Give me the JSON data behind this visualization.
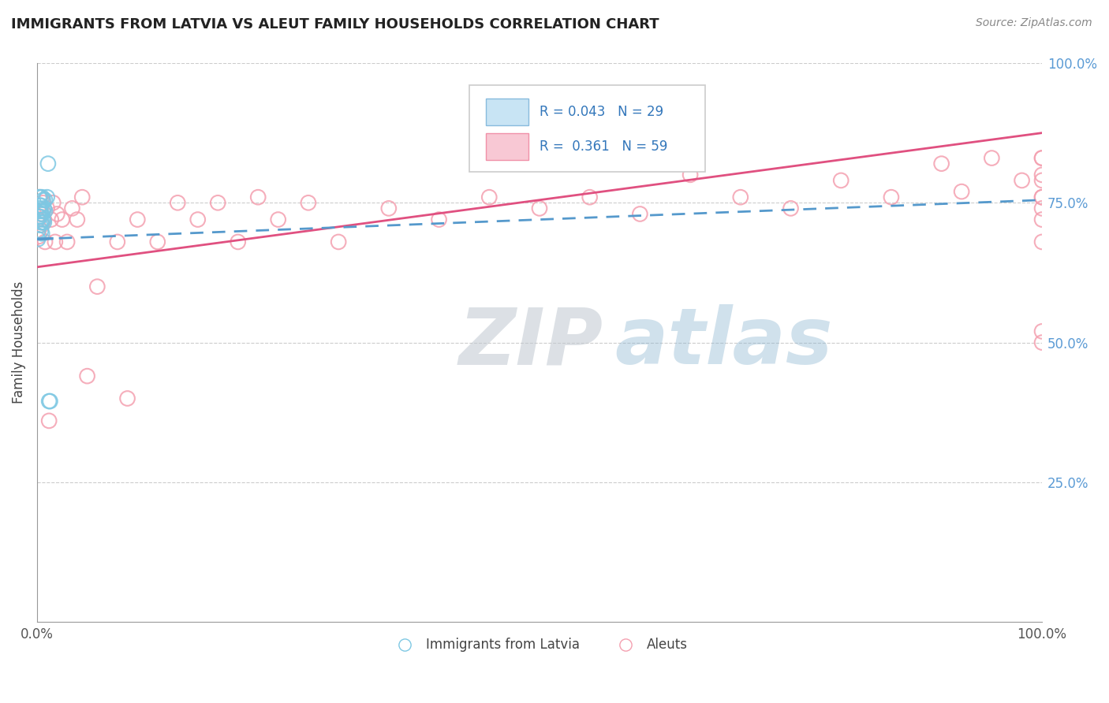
{
  "title": "IMMIGRANTS FROM LATVIA VS ALEUT FAMILY HOUSEHOLDS CORRELATION CHART",
  "source": "Source: ZipAtlas.com",
  "ylabel": "Family Households",
  "legend_label1": "Immigrants from Latvia",
  "legend_label2": "Aleuts",
  "legend_r1": "R = 0.043",
  "legend_n1": "N = 29",
  "legend_r2": "R = 0.361",
  "legend_n2": "N = 59",
  "color_blue": "#7ec8e3",
  "color_pink": "#f4a0b0",
  "color_blue_line": "#5599cc",
  "color_pink_line": "#e05080",
  "color_grid": "#cccccc",
  "background_color": "#ffffff",
  "watermark_zip": "ZIP",
  "watermark_atlas": "atlas",
  "blue_scatter_x": [
    0.001,
    0.001,
    0.002,
    0.002,
    0.002,
    0.003,
    0.003,
    0.003,
    0.003,
    0.003,
    0.004,
    0.004,
    0.004,
    0.004,
    0.005,
    0.005,
    0.005,
    0.005,
    0.006,
    0.006,
    0.006,
    0.007,
    0.007,
    0.008,
    0.008,
    0.01,
    0.011,
    0.012,
    0.013
  ],
  "blue_scatter_y": [
    0.685,
    0.7,
    0.725,
    0.74,
    0.76,
    0.71,
    0.725,
    0.735,
    0.745,
    0.76,
    0.7,
    0.715,
    0.73,
    0.745,
    0.695,
    0.715,
    0.73,
    0.76,
    0.72,
    0.735,
    0.755,
    0.715,
    0.74,
    0.735,
    0.755,
    0.76,
    0.82,
    0.395,
    0.395
  ],
  "pink_scatter_x": [
    0.001,
    0.002,
    0.003,
    0.004,
    0.005,
    0.006,
    0.007,
    0.008,
    0.01,
    0.012,
    0.014,
    0.016,
    0.018,
    0.02,
    0.025,
    0.03,
    0.035,
    0.04,
    0.045,
    0.05,
    0.06,
    0.08,
    0.09,
    0.1,
    0.12,
    0.14,
    0.16,
    0.18,
    0.2,
    0.22,
    0.24,
    0.27,
    0.3,
    0.35,
    0.4,
    0.45,
    0.5,
    0.55,
    0.6,
    0.65,
    0.7,
    0.75,
    0.8,
    0.85,
    0.9,
    0.92,
    0.95,
    0.98,
    1.0,
    1.0,
    1.0,
    1.0,
    1.0,
    1.0,
    1.0,
    1.0,
    1.0,
    1.0,
    1.0
  ],
  "pink_scatter_y": [
    0.72,
    0.69,
    0.76,
    0.73,
    0.71,
    0.75,
    0.72,
    0.68,
    0.74,
    0.36,
    0.72,
    0.75,
    0.68,
    0.73,
    0.72,
    0.68,
    0.74,
    0.72,
    0.76,
    0.44,
    0.6,
    0.68,
    0.4,
    0.72,
    0.68,
    0.75,
    0.72,
    0.75,
    0.68,
    0.76,
    0.72,
    0.75,
    0.68,
    0.74,
    0.72,
    0.76,
    0.74,
    0.76,
    0.73,
    0.8,
    0.76,
    0.74,
    0.79,
    0.76,
    0.82,
    0.77,
    0.83,
    0.79,
    0.52,
    0.72,
    0.76,
    0.79,
    0.83,
    0.76,
    0.8,
    0.74,
    0.68,
    0.83,
    0.5
  ],
  "blue_line_x": [
    0.0,
    1.0
  ],
  "blue_line_y": [
    0.685,
    0.755
  ],
  "pink_line_x": [
    0.0,
    1.0
  ],
  "pink_line_y": [
    0.635,
    0.875
  ],
  "xlim": [
    0.0,
    1.0
  ],
  "ylim": [
    0.0,
    1.0
  ],
  "yticks": [
    0.25,
    0.5,
    0.75,
    1.0
  ],
  "ytick_labels": [
    "25.0%",
    "50.0%",
    "75.0%",
    "100.0%"
  ],
  "xticks": [
    0.0,
    1.0
  ],
  "xtick_labels": [
    "0.0%",
    "100.0%"
  ]
}
